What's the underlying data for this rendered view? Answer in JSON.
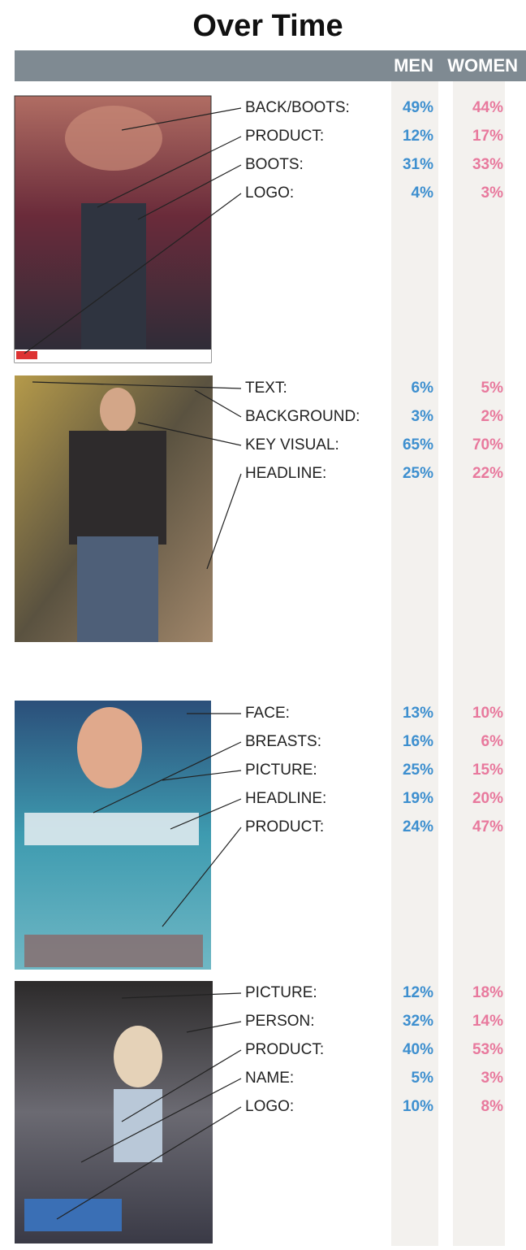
{
  "header": {
    "title": "Over Time"
  },
  "columns": [
    "MEN",
    "WOMEN"
  ],
  "panels": [
    {
      "rows": [
        {
          "label": "BACK/BOOTS:",
          "men": "49%",
          "women": "44%"
        },
        {
          "label": "PRODUCT:",
          "men": "12%",
          "women": "17%"
        },
        {
          "label": "BOOTS:",
          "men": "31%",
          "women": "33%"
        },
        {
          "label": "LOGO:",
          "men": "4%",
          "women": "3%"
        }
      ]
    },
    {
      "rows": [
        {
          "label": "TEXT:",
          "men": "6%",
          "women": "5%"
        },
        {
          "label": "BACKGROUND:",
          "men": "3%",
          "women": "2%"
        },
        {
          "label": "KEY VISUAL:",
          "men": "65%",
          "women": "70%"
        },
        {
          "label": "HEADLINE:",
          "men": "25%",
          "women": "22%"
        }
      ]
    },
    {
      "rows": [
        {
          "label": "FACE:",
          "men": "13%",
          "women": "10%"
        },
        {
          "label": "BREASTS:",
          "men": "16%",
          "women": "6%"
        },
        {
          "label": "PICTURE:",
          "men": "25%",
          "women": "15%"
        },
        {
          "label": "HEADLINE:",
          "men": "19%",
          "women": "20%"
        },
        {
          "label": "PRODUCT:",
          "men": "24%",
          "women": "47%"
        }
      ]
    },
    {
      "rows": [
        {
          "label": "PICTURE:",
          "men": "12%",
          "women": "18%"
        },
        {
          "label": "PERSON:",
          "men": "32%",
          "women": "14%"
        },
        {
          "label": "PRODUCT:",
          "men": "40%",
          "women": "53%"
        },
        {
          "label": "NAME:",
          "men": "5%",
          "women": "3%"
        },
        {
          "label": "LOGO:",
          "men": "10%",
          "women": "8%"
        }
      ]
    }
  ]
}
